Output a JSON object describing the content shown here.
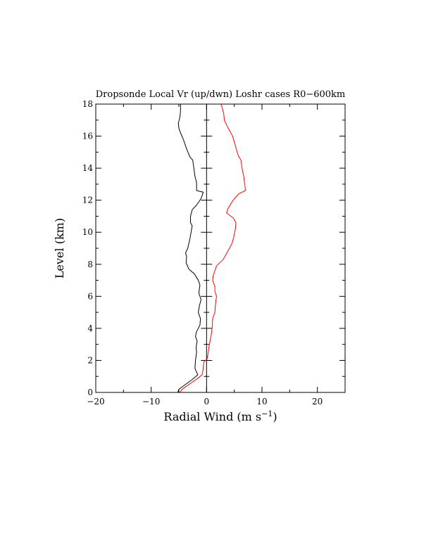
{
  "chart_data": {
    "type": "line",
    "title": "Dropsonde Local Vr (up/dwn) Loshr cases R0−600km",
    "xlabel_main": "Radial Wind (m s",
    "xlabel_sup": "−1",
    "xlabel_close": ")",
    "ylabel": "Level (km)",
    "xlim": [
      -20,
      25
    ],
    "ylim": [
      0,
      18
    ],
    "x_ticks": [
      -20,
      -10,
      0,
      10,
      20
    ],
    "x_tick_labels": [
      "−20",
      "−10",
      "0",
      "10",
      "20"
    ],
    "x_minor_ticks": [
      -15,
      -5,
      5,
      15
    ],
    "y_ticks": [
      0,
      2,
      4,
      6,
      8,
      10,
      12,
      14,
      16,
      18
    ],
    "y_tick_labels": [
      "0",
      "2",
      "4",
      "6",
      "8",
      "10",
      "12",
      "14",
      "16",
      "18"
    ],
    "y_minor_ticks": [
      1,
      3,
      5,
      7,
      9,
      11,
      13,
      15,
      17
    ],
    "zero_line_x": 0,
    "grid": false,
    "series": [
      {
        "color": "#000000",
        "points": [
          [
            -5.2,
            0.0
          ],
          [
            -5.0,
            0.2
          ],
          [
            -3.8,
            0.5
          ],
          [
            -2.6,
            0.8
          ],
          [
            -1.6,
            1.1
          ],
          [
            -2.1,
            1.5
          ],
          [
            -2.0,
            2.0
          ],
          [
            -1.8,
            2.5
          ],
          [
            -1.9,
            2.8
          ],
          [
            -1.7,
            3.2
          ],
          [
            -2.0,
            3.5
          ],
          [
            -1.8,
            3.8
          ],
          [
            -1.2,
            4.2
          ],
          [
            -1.1,
            4.6
          ],
          [
            -1.5,
            5.0
          ],
          [
            -1.3,
            5.4
          ],
          [
            -1.0,
            5.8
          ],
          [
            -1.4,
            6.2
          ],
          [
            -1.2,
            6.7
          ],
          [
            -1.5,
            7.0
          ],
          [
            -2.2,
            7.4
          ],
          [
            -3.2,
            7.7
          ],
          [
            -3.7,
            8.1
          ],
          [
            -3.6,
            8.5
          ],
          [
            -3.8,
            8.7
          ],
          [
            -3.4,
            9.0
          ],
          [
            -3.0,
            9.6
          ],
          [
            -2.8,
            10.0
          ],
          [
            -2.6,
            10.4
          ],
          [
            -2.9,
            10.6
          ],
          [
            -2.9,
            11.0
          ],
          [
            -2.6,
            11.4
          ],
          [
            -1.8,
            11.7
          ],
          [
            -1.0,
            12.1
          ],
          [
            -0.6,
            12.5
          ],
          [
            -1.8,
            12.6
          ],
          [
            -1.8,
            13.1
          ],
          [
            -2.1,
            13.5
          ],
          [
            -2.3,
            14.0
          ],
          [
            -2.5,
            14.5
          ],
          [
            -3.0,
            14.7
          ],
          [
            -3.6,
            15.2
          ],
          [
            -3.9,
            15.5
          ],
          [
            -4.2,
            15.8
          ],
          [
            -4.7,
            16.2
          ],
          [
            -5.0,
            16.5
          ],
          [
            -5.1,
            16.8
          ],
          [
            -4.8,
            17.2
          ],
          [
            -4.7,
            17.6
          ],
          [
            -4.7,
            18.0
          ]
        ]
      },
      {
        "color": "#ff0000",
        "points": [
          [
            -4.8,
            0.0
          ],
          [
            -4.4,
            0.2
          ],
          [
            -3.2,
            0.5
          ],
          [
            -1.9,
            0.8
          ],
          [
            -0.8,
            1.1
          ],
          [
            -0.6,
            1.5
          ],
          [
            -0.5,
            1.9
          ],
          [
            0.1,
            2.1
          ],
          [
            0.3,
            2.5
          ],
          [
            0.5,
            3.0
          ],
          [
            0.8,
            3.5
          ],
          [
            1.0,
            4.0
          ],
          [
            1.1,
            4.6
          ],
          [
            1.5,
            5.0
          ],
          [
            1.6,
            5.5
          ],
          [
            1.8,
            6.0
          ],
          [
            1.5,
            6.3
          ],
          [
            1.5,
            6.6
          ],
          [
            1.1,
            7.0
          ],
          [
            1.2,
            7.3
          ],
          [
            1.8,
            7.9
          ],
          [
            3.0,
            8.3
          ],
          [
            3.8,
            8.8
          ],
          [
            4.6,
            9.3
          ],
          [
            4.9,
            9.7
          ],
          [
            5.2,
            10.2
          ],
          [
            5.3,
            10.6
          ],
          [
            4.8,
            10.9
          ],
          [
            3.6,
            11.2
          ],
          [
            3.9,
            11.5
          ],
          [
            4.8,
            12.0
          ],
          [
            5.8,
            12.4
          ],
          [
            7.0,
            12.6
          ],
          [
            6.9,
            13.0
          ],
          [
            6.7,
            13.5
          ],
          [
            6.4,
            14.0
          ],
          [
            6.2,
            14.5
          ],
          [
            5.7,
            14.8
          ],
          [
            5.2,
            15.4
          ],
          [
            4.7,
            16.0
          ],
          [
            3.9,
            16.5
          ],
          [
            3.2,
            17.0
          ],
          [
            3.1,
            17.4
          ],
          [
            2.8,
            17.8
          ],
          [
            2.6,
            18.0
          ]
        ]
      }
    ]
  }
}
